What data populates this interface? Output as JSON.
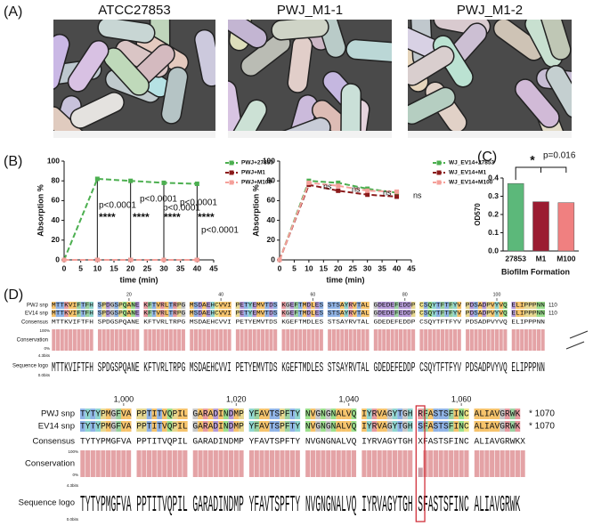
{
  "panels": [
    "(A)",
    "(B)",
    "(C)",
    "(D)"
  ],
  "images": [
    "ATCC27853",
    "PWJ_M1-1",
    "PWJ_M1-2"
  ],
  "chart_data": [
    {
      "type": "line",
      "xlabel": "time (min)",
      "ylabel": "Absorption %",
      "x": [
        0,
        10,
        20,
        30,
        40
      ],
      "xlim": [
        0,
        45
      ],
      "xticks": [
        0,
        5,
        10,
        15,
        20,
        25,
        30,
        35,
        40,
        45
      ],
      "ylim": [
        0,
        100
      ],
      "yticks": [
        0,
        20,
        40,
        60,
        80,
        100
      ],
      "series": [
        {
          "name": "PWJ+27853",
          "color": "#4caf50",
          "values": [
            0,
            82,
            80,
            78,
            77
          ]
        },
        {
          "name": "PWJ+M1",
          "color": "#8b1a1a",
          "values": [
            0,
            0,
            0,
            0,
            0
          ]
        },
        {
          "name": "PWJ+M100",
          "color": "#f4a09a",
          "values": [
            0,
            0,
            0,
            0,
            0
          ]
        }
      ],
      "annotations": [
        "p<0.0001",
        "****",
        "p<0.0001",
        "****",
        "p<0.0001",
        "****",
        "p<0.0001",
        "****",
        "p<0.0001"
      ]
    },
    {
      "type": "line",
      "xlabel": "time (min)",
      "ylabel": "Absorption %",
      "x": [
        0,
        10,
        20,
        30,
        40
      ],
      "xlim": [
        0,
        45
      ],
      "xticks": [
        0,
        5,
        10,
        15,
        20,
        25,
        30,
        35,
        40,
        45
      ],
      "ylim": [
        0,
        100
      ],
      "yticks": [
        0,
        20,
        40,
        60,
        80,
        100
      ],
      "series": [
        {
          "name": "WJ_EV14+27853",
          "color": "#4caf50",
          "values": [
            0,
            80,
            78,
            72,
            68
          ]
        },
        {
          "name": "WJ_EV14+M1",
          "color": "#8b1a1a",
          "values": [
            0,
            76,
            70,
            66,
            64
          ]
        },
        {
          "name": "WJ_EV14+M100",
          "color": "#f4a09a",
          "values": [
            0,
            78,
            75,
            70,
            69
          ]
        }
      ],
      "annotations": [
        "ns",
        "ns",
        "ns",
        "ns"
      ]
    },
    {
      "type": "bar",
      "xlabel": "Biofilm Formation",
      "ylabel": "OD570",
      "categories": [
        "27853",
        "M1",
        "M100"
      ],
      "values": [
        0.37,
        0.27,
        0.265
      ],
      "colors": [
        "#5cb87a",
        "#9b1c31",
        "#f08080"
      ],
      "ylim": [
        0,
        0.4
      ],
      "yticks": [
        {
          "value": 0,
          "label": "0.0"
        },
        0.1,
        0.2,
        0.3,
        0.4
      ],
      "annotations": [
        "*",
        "p=0.016"
      ]
    }
  ],
  "alignment": {
    "blocks": [
      {
        "ticks": [
          "20",
          "40",
          "60",
          "80",
          "100"
        ],
        "rows": [
          {
            "name": "PWJ snp",
            "seq": "MTTKVIFTFH SPDGSPQANE KFTVRLTRPG MSDAEHCVVI PETYEMVTDS KGEFTMDLES STSAYRVTAL GDEDEFEDDP CSQYTFTFYV PDSADPVYVQ ELIPPPNN",
            "end": "110"
          },
          {
            "name": "EV14 snp",
            "seq": "MTTKVIFTFH SPDGSPQANE KFTVRLTRPG MSDAEHCVVI PETYEMVTDS KGEFTMDLES STSAYRVTAL GDEDEFEDDP CSQYTFTFYV PDSADPVYVQ ELIPPPNN",
            "end": "110"
          }
        ],
        "consensus": {
          "name": "Consensus",
          "seq": "MTTKVIFTFH SPDGSPQANE KFTVRLTRPG MSDAEHCVVI PETYEMVTDS KGEFTMDLES STSAYRVTAL GDEDEFEDDP CSQYTFTFYV PDSADPVYVQ ELIPPPNN"
        },
        "conservation": {
          "name": "Conservation",
          "top": "100%",
          "bottom": "0%"
        },
        "logo": {
          "name": "Sequence logo",
          "top": "4.3bits",
          "bottom": "0.0bits",
          "seq": "MTTKVIFTFH SPDGSPQANE KFTVRLTRPG MSDAEHCVVI PETYEMVTDS KGEFTMDLES STSAYRVTAL GDEDEFEDDP CSQYTFTFYV PDSADPVYVQ ELIPPPNN"
        }
      },
      {
        "ticks": [
          "1,000",
          "1,020",
          "1,040",
          "1,060"
        ],
        "rows": [
          {
            "name": "PWJ snp",
            "seq": "TYTYPMGFVA PPTITVQPIL GARADINDMP YFAVTSPFTY NVGNGNALVQ IYRVAGYTGH RFASTSFINC ALIAVGRWK",
            "end": "* 1070"
          },
          {
            "name": "EV14 snp",
            "seq": "TYTYPMGFVA PPTITVQPIL GARADINDMP YFAVTSPFTY NVGNGNALVQ IYRVAGYTGH SFASTSFINC ALIAVGRWK",
            "end": "* 1070"
          }
        ],
        "consensus": {
          "name": "Consensus",
          "seq": "TYTYPMGFVA PPTITVQPIL GARADINDMP YFAVTSPFTY NVGNGNALVQ IYRVAGYTGH XFASTSFINC ALIAVGRWKX"
        },
        "conservation": {
          "name": "Conservation",
          "top": "100%",
          "bottom": "0%"
        },
        "logo": {
          "name": "Sequence logo",
          "top": "4.3bits",
          "bottom": "0.0bits",
          "seq": "TYTYPMGFVA PPTITVQPIL GARADINDMP YFAVTSPFTY NVGNGNALVQ IYRVAGYTGH SFASTSFINC ALIAVGRWK"
        }
      }
    ]
  }
}
